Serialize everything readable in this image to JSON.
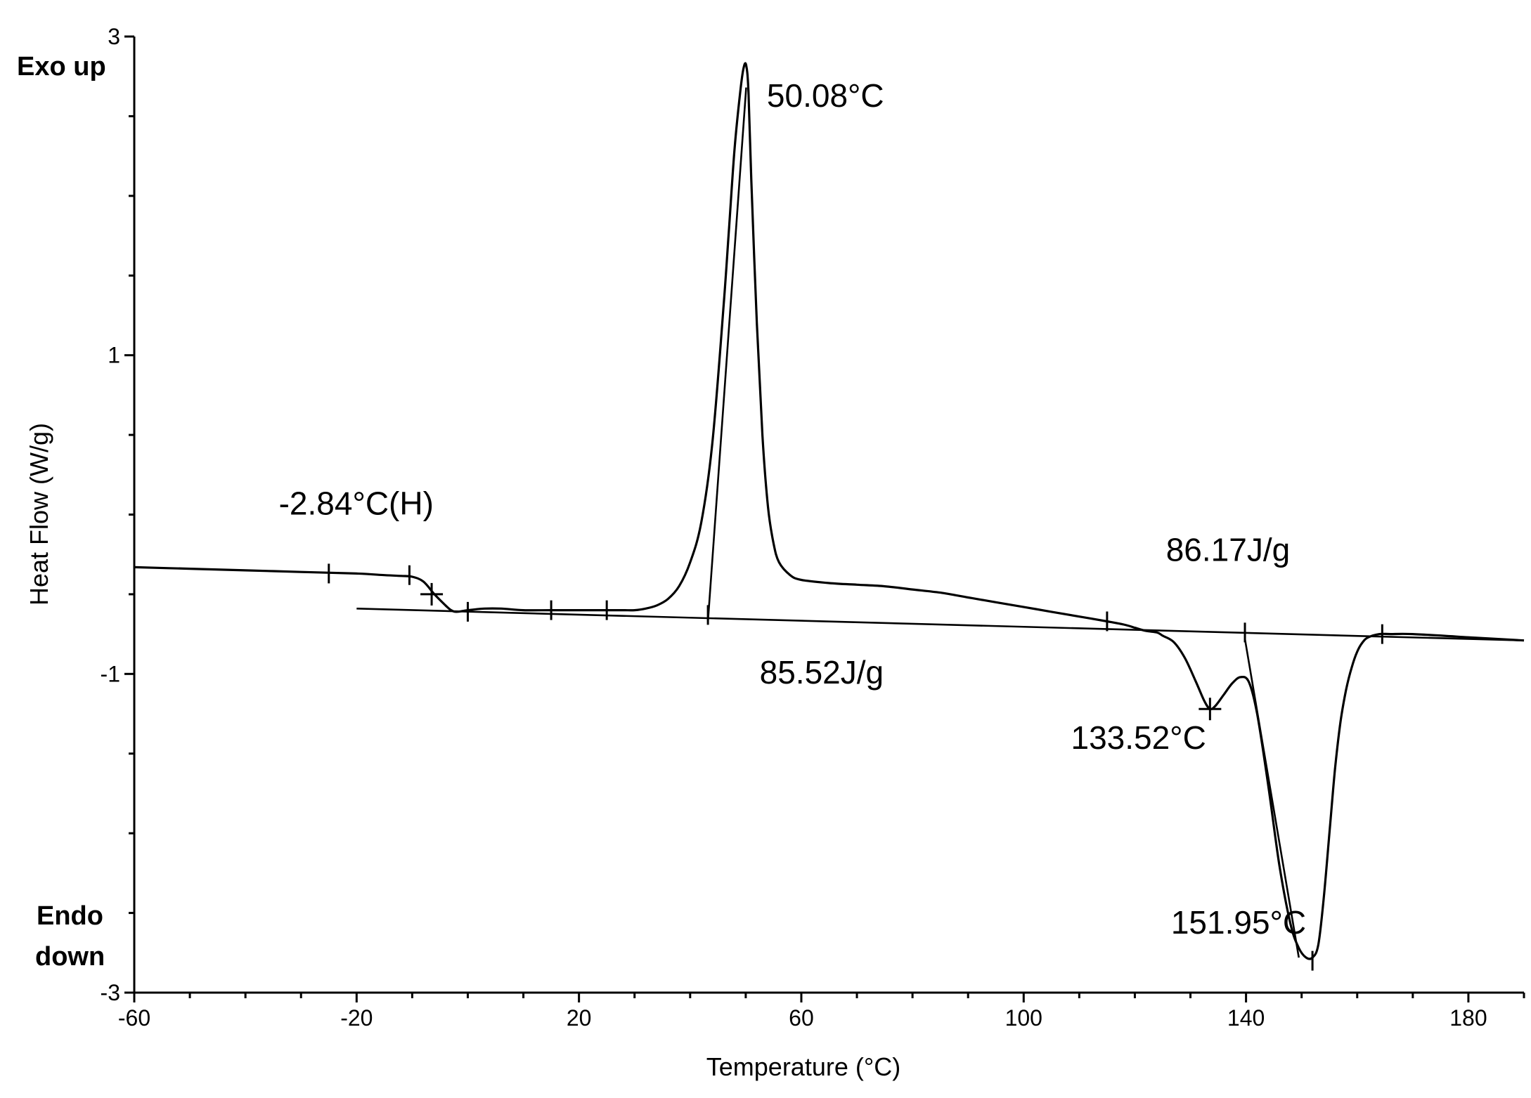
{
  "chart_data": {
    "type": "line",
    "xlabel": "Temperature (°C)",
    "ylabel": "Heat Flow (W/g)",
    "xlim": [
      -60,
      190
    ],
    "ylim": [
      -3,
      3
    ],
    "x_ticks": [
      -60,
      -20,
      20,
      60,
      100,
      140,
      180
    ],
    "x_tick_labels": [
      "-60",
      "-20",
      "20",
      "60",
      "100",
      "140",
      "180"
    ],
    "x_minor_step": 10,
    "y_ticks": [
      -3,
      -1,
      1,
      3
    ],
    "y_tick_labels": [
      "-3",
      "-1",
      "1",
      "3"
    ],
    "y_minor_step": 0.5,
    "exo_label": "Exo up",
    "endo_label_line1": "Endo",
    "endo_label_line2": "down",
    "grid": false,
    "legend": "none",
    "series": [
      {
        "x": [
          -60,
          -50,
          -40,
          -30,
          -20,
          -15,
          -12,
          -10,
          -8,
          -6,
          -4,
          -3,
          -2,
          0,
          3,
          6,
          10,
          15,
          20,
          25,
          28,
          30,
          32,
          34,
          36,
          38,
          40,
          42,
          44,
          46,
          47,
          48,
          49,
          49.6,
          50.08,
          50.5,
          51,
          52,
          53,
          54,
          55,
          56,
          58,
          60,
          65,
          70,
          75,
          80,
          85,
          90,
          95,
          100,
          105,
          110,
          115,
          118,
          120,
          122,
          124,
          125,
          127,
          129,
          131,
          132.5,
          133.52,
          134.5,
          136,
          137.5,
          139,
          140.5,
          142,
          144,
          146,
          148,
          149.5,
          150.8,
          151.95,
          153,
          154,
          155,
          156,
          157,
          158,
          159,
          160,
          161,
          162,
          164,
          166,
          170,
          180,
          190
        ],
        "y": [
          -0.33,
          -0.34,
          -0.35,
          -0.36,
          -0.37,
          -0.38,
          -0.385,
          -0.39,
          -0.42,
          -0.5,
          -0.57,
          -0.6,
          -0.61,
          -0.6,
          -0.59,
          -0.59,
          -0.6,
          -0.6,
          -0.6,
          -0.6,
          -0.6,
          -0.6,
          -0.59,
          -0.57,
          -0.53,
          -0.45,
          -0.3,
          -0.05,
          0.45,
          1.3,
          1.8,
          2.3,
          2.65,
          2.8,
          2.82,
          2.65,
          2.1,
          1.2,
          0.5,
          0.05,
          -0.18,
          -0.3,
          -0.38,
          -0.41,
          -0.43,
          -0.44,
          -0.45,
          -0.47,
          -0.49,
          -0.52,
          -0.55,
          -0.58,
          -0.61,
          -0.64,
          -0.67,
          -0.69,
          -0.71,
          -0.73,
          -0.74,
          -0.76,
          -0.8,
          -0.9,
          -1.05,
          -1.17,
          -1.22,
          -1.2,
          -1.13,
          -1.06,
          -1.02,
          -1.05,
          -1.25,
          -1.7,
          -2.2,
          -2.57,
          -2.72,
          -2.78,
          -2.78,
          -2.7,
          -2.4,
          -2.0,
          -1.6,
          -1.3,
          -1.1,
          -0.96,
          -0.86,
          -0.8,
          -0.77,
          -0.75,
          -0.75,
          -0.75,
          -0.77,
          -0.79
        ]
      }
    ],
    "baseline": {
      "x": [
        -20,
        190
      ],
      "y": [
        -0.59,
        -0.79
      ]
    },
    "onset_tangents": [
      {
        "x": [
          43.2,
          50.08
        ],
        "y": [
          -0.67,
          2.68
        ]
      },
      {
        "x": [
          139.8,
          149.5
        ],
        "y": [
          -0.78,
          -2.78
        ]
      }
    ],
    "marker_ticks": [
      {
        "x": -25,
        "y": -0.37
      },
      {
        "x": -10.5,
        "y": -0.38
      },
      {
        "x": 0,
        "y": -0.61
      },
      {
        "x": 15,
        "y": -0.6
      },
      {
        "x": 25,
        "y": -0.6
      },
      {
        "x": 43.2,
        "y": -0.63
      },
      {
        "x": 115,
        "y": -0.67
      },
      {
        "x": 139.8,
        "y": -0.74
      },
      {
        "x": 164.5,
        "y": -0.75
      },
      {
        "x": 151.95,
        "y": -2.8
      }
    ],
    "cross_markers": [
      {
        "x": -6.5,
        "y": -0.5
      },
      {
        "x": 133.52,
        "y": -1.22
      }
    ],
    "annotations": [
      {
        "text": "50.08°C",
        "x": 53.8,
        "y": 2.56
      },
      {
        "text": "-2.84°C(H)",
        "x": -34,
        "y": 0.0
      },
      {
        "text": "86.17J/g",
        "x": 125.6,
        "y": -0.29
      },
      {
        "text": "85.52J/g",
        "x": 52.5,
        "y": -1.06
      },
      {
        "text": "133.52°C",
        "x": 108.5,
        "y": -1.47
      },
      {
        "text": "151.95°C",
        "x": 126.5,
        "y": -2.63
      }
    ]
  }
}
